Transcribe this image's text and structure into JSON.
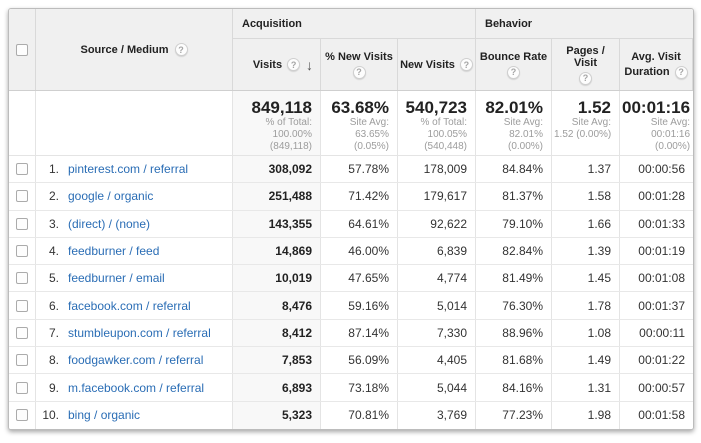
{
  "table": {
    "groups": {
      "acquisition": "Acquisition",
      "behavior": "Behavior"
    },
    "columns": {
      "source_medium": "Source / Medium",
      "visits": "Visits",
      "pct_new_visits": "% New Visits",
      "new_visits": "New Visits",
      "bounce_rate": "Bounce Rate",
      "pages_visit": "Pages / Visit",
      "avg_duration_line1": "Avg. Visit",
      "avg_duration_line2": "Duration"
    },
    "icons": {
      "help_glyph": "?",
      "sort_desc_glyph": "↓"
    },
    "summary": {
      "visits": {
        "value": "849,118",
        "sub1": "% of Total:",
        "sub2": "100.00%",
        "sub3": "(849,118)"
      },
      "pct_new_visits": {
        "value": "63.68%",
        "sub1": "Site Avg:",
        "sub2": "63.65%",
        "sub3": "(0.05%)"
      },
      "new_visits": {
        "value": "540,723",
        "sub1": "% of Total:",
        "sub2": "100.05%",
        "sub3": "(540,448)"
      },
      "bounce_rate": {
        "value": "82.01%",
        "sub1": "Site Avg:",
        "sub2": "82.01%",
        "sub3": "(0.00%)"
      },
      "pages_visit": {
        "value": "1.52",
        "sub1": "Site Avg:",
        "sub2": "1.52 (0.00%)",
        "sub3": ""
      },
      "avg_duration": {
        "value": "00:01:16",
        "sub1": "Site Avg:",
        "sub2": "00:01:16",
        "sub3": "(0.00%)"
      }
    },
    "rows": [
      {
        "index": "1.",
        "source": "pinterest.com / referral",
        "visits": "308,092",
        "pct_new": "57.78%",
        "new_visits": "178,009",
        "bounce": "84.84%",
        "pages": "1.37",
        "duration": "00:00:56"
      },
      {
        "index": "2.",
        "source": "google / organic",
        "visits": "251,488",
        "pct_new": "71.42%",
        "new_visits": "179,617",
        "bounce": "81.37%",
        "pages": "1.58",
        "duration": "00:01:28"
      },
      {
        "index": "3.",
        "source": "(direct) / (none)",
        "visits": "143,355",
        "pct_new": "64.61%",
        "new_visits": "92,622",
        "bounce": "79.10%",
        "pages": "1.66",
        "duration": "00:01:33"
      },
      {
        "index": "4.",
        "source": "feedburner / feed",
        "visits": "14,869",
        "pct_new": "46.00%",
        "new_visits": "6,839",
        "bounce": "82.84%",
        "pages": "1.39",
        "duration": "00:01:19"
      },
      {
        "index": "5.",
        "source": "feedburner / email",
        "visits": "10,019",
        "pct_new": "47.65%",
        "new_visits": "4,774",
        "bounce": "81.49%",
        "pages": "1.45",
        "duration": "00:01:08"
      },
      {
        "index": "6.",
        "source": "facebook.com / referral",
        "visits": "8,476",
        "pct_new": "59.16%",
        "new_visits": "5,014",
        "bounce": "76.30%",
        "pages": "1.78",
        "duration": "00:01:37"
      },
      {
        "index": "7.",
        "source": "stumbleupon.com / referral",
        "visits": "8,412",
        "pct_new": "87.14%",
        "new_visits": "7,330",
        "bounce": "88.96%",
        "pages": "1.08",
        "duration": "00:00:11"
      },
      {
        "index": "8.",
        "source": "foodgawker.com / referral",
        "visits": "7,853",
        "pct_new": "56.09%",
        "new_visits": "4,405",
        "bounce": "81.68%",
        "pages": "1.49",
        "duration": "00:01:22"
      },
      {
        "index": "9.",
        "source": "m.facebook.com / referral",
        "visits": "6,893",
        "pct_new": "73.18%",
        "new_visits": "5,044",
        "bounce": "84.16%",
        "pages": "1.31",
        "duration": "00:00:57"
      },
      {
        "index": "10.",
        "source": "bing / organic",
        "visits": "5,323",
        "pct_new": "70.81%",
        "new_visits": "3,769",
        "bounce": "77.23%",
        "pages": "1.98",
        "duration": "00:01:58"
      }
    ]
  },
  "colors": {
    "link_blue": "#2a6db5",
    "header_bg": "#f0f0f0",
    "sorted_column_bg": "#f8f8f8",
    "border": "#e4e4e4",
    "sub_text": "#9c9c9c"
  }
}
